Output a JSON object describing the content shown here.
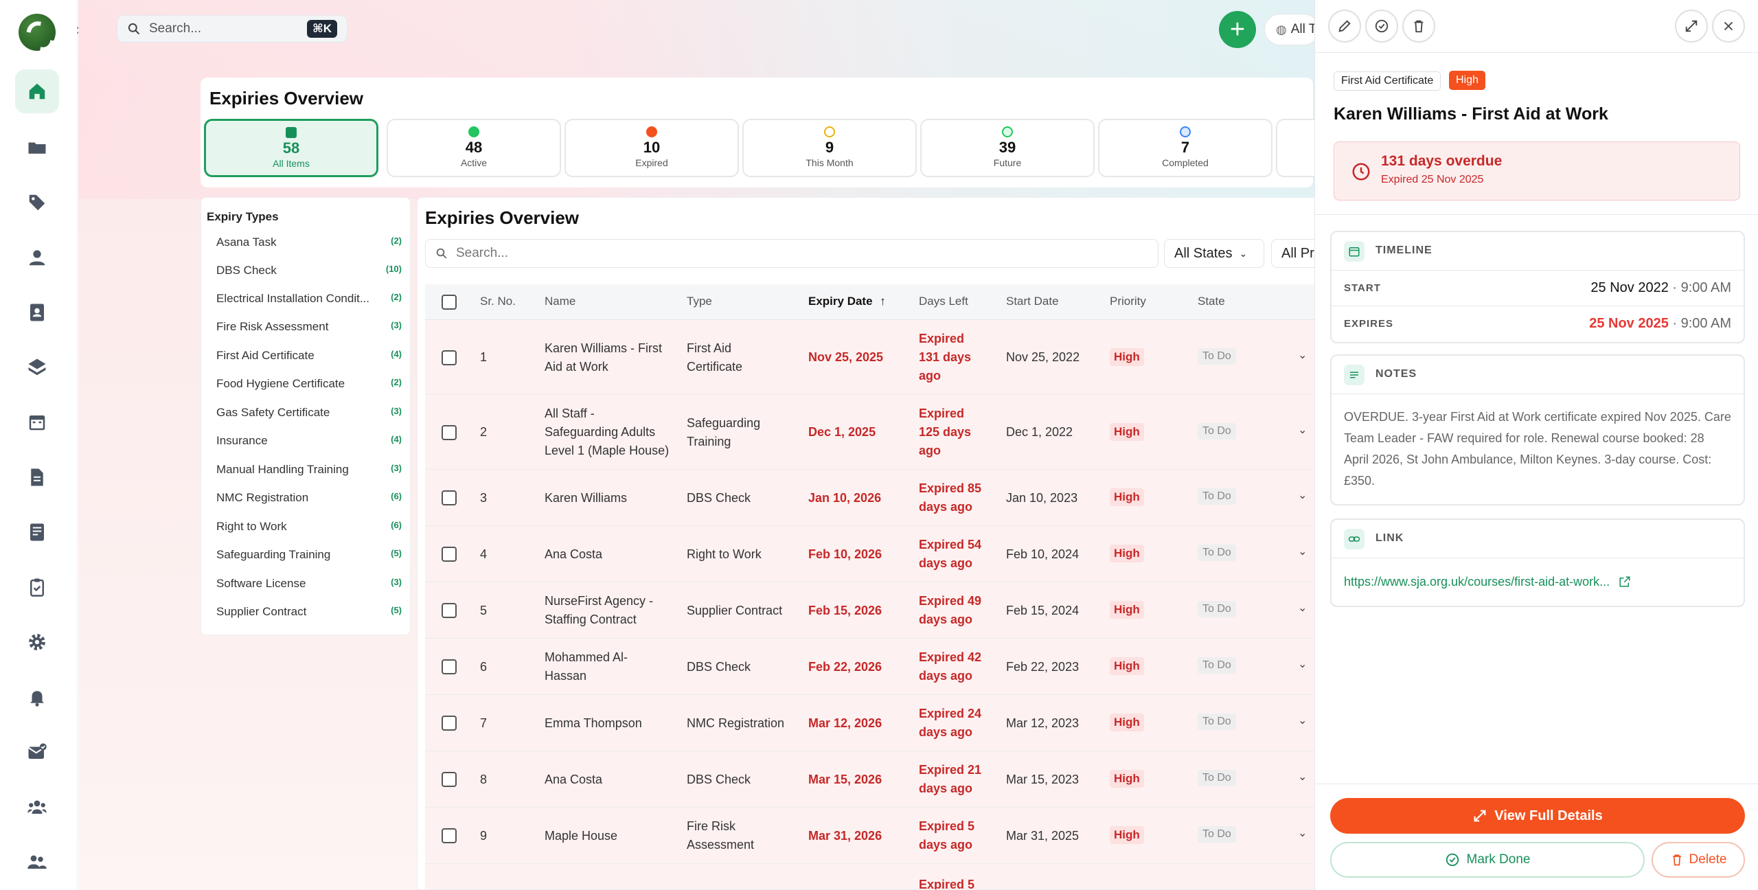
{
  "topbar": {
    "search_placeholder": "Search...",
    "shortcut": "⌘K",
    "add_label": "+",
    "scope_label": "All T"
  },
  "overview": {
    "title": "Expiries Overview",
    "stats": [
      {
        "value": "58",
        "label": "All Items",
        "color": "#16905a"
      },
      {
        "value": "48",
        "label": "Active",
        "color": "#22c55e"
      },
      {
        "value": "10",
        "label": "Expired",
        "color": "#f4511e"
      },
      {
        "value": "9",
        "label": "This Month",
        "color": "#eab308"
      },
      {
        "value": "39",
        "label": "Future",
        "color": "#22c55e"
      },
      {
        "value": "7",
        "label": "Completed",
        "color": "#3b82f6"
      }
    ]
  },
  "expiry_types": {
    "title": "Expiry Types",
    "items": [
      {
        "label": "Asana Task",
        "count": "(2)"
      },
      {
        "label": "DBS Check",
        "count": "(10)"
      },
      {
        "label": "Electrical Installation Condit...",
        "count": "(2)"
      },
      {
        "label": "Fire Risk Assessment",
        "count": "(3)"
      },
      {
        "label": "First Aid Certificate",
        "count": "(4)"
      },
      {
        "label": "Food Hygiene Certificate",
        "count": "(2)"
      },
      {
        "label": "Gas Safety Certificate",
        "count": "(3)"
      },
      {
        "label": "Insurance",
        "count": "(4)"
      },
      {
        "label": "Manual Handling Training",
        "count": "(3)"
      },
      {
        "label": "NMC Registration",
        "count": "(6)"
      },
      {
        "label": "Right to Work",
        "count": "(6)"
      },
      {
        "label": "Safeguarding Training",
        "count": "(5)"
      },
      {
        "label": "Software License",
        "count": "(3)"
      },
      {
        "label": "Supplier Contract",
        "count": "(5)"
      }
    ]
  },
  "table": {
    "title": "Expiries Overview",
    "search_placeholder": "Search...",
    "filter_states": "All States",
    "filter_priority": "All Pr",
    "columns": [
      "Sr. No.",
      "Name",
      "Type",
      "Expiry Date",
      "Days Left",
      "Start Date",
      "Priority",
      "State"
    ],
    "rows": [
      {
        "sr": "1",
        "name": [
          "Karen Williams - First",
          "Aid at Work"
        ],
        "type": [
          "First Aid",
          "Certificate"
        ],
        "expiry": "Nov 25, 2025",
        "days": [
          "Expired",
          "131 days",
          "ago"
        ],
        "start": "Nov 25, 2022",
        "priority": "High",
        "state": "To Do"
      },
      {
        "sr": "2",
        "name": [
          "All Staff -",
          "Safeguarding Adults",
          "Level 1 (Maple House)"
        ],
        "type": [
          "Safeguarding",
          "Training"
        ],
        "expiry": "Dec 1, 2025",
        "days": [
          "Expired",
          "125 days",
          "ago"
        ],
        "start": "Dec 1, 2022",
        "priority": "High",
        "state": "To Do"
      },
      {
        "sr": "3",
        "name": [
          "Karen Williams"
        ],
        "type": [
          "DBS Check"
        ],
        "expiry": "Jan 10, 2026",
        "days": [
          "Expired 85",
          "days ago"
        ],
        "start": "Jan 10, 2023",
        "priority": "High",
        "state": "To Do"
      },
      {
        "sr": "4",
        "name": [
          "Ana Costa"
        ],
        "type": [
          "Right to Work"
        ],
        "expiry": "Feb 10, 2026",
        "days": [
          "Expired 54",
          "days ago"
        ],
        "start": "Feb 10, 2024",
        "priority": "High",
        "state": "To Do"
      },
      {
        "sr": "5",
        "name": [
          "NurseFirst Agency -",
          "Staffing Contract"
        ],
        "type": [
          "Supplier Contract"
        ],
        "expiry": "Feb 15, 2026",
        "days": [
          "Expired 49",
          "days ago"
        ],
        "start": "Feb 15, 2024",
        "priority": "High",
        "state": "To Do"
      },
      {
        "sr": "6",
        "name": [
          "Mohammed Al-",
          "Hassan"
        ],
        "type": [
          "DBS Check"
        ],
        "expiry": "Feb 22, 2026",
        "days": [
          "Expired 42",
          "days ago"
        ],
        "start": "Feb 22, 2023",
        "priority": "High",
        "state": "To Do"
      },
      {
        "sr": "7",
        "name": [
          "Emma Thompson"
        ],
        "type": [
          "NMC Registration"
        ],
        "expiry": "Mar 12, 2026",
        "days": [
          "Expired 24",
          "days ago"
        ],
        "start": "Mar 12, 2023",
        "priority": "High",
        "state": "To Do"
      },
      {
        "sr": "8",
        "name": [
          "Ana Costa"
        ],
        "type": [
          "DBS Check"
        ],
        "expiry": "Mar 15, 2026",
        "days": [
          "Expired 21",
          "days ago"
        ],
        "start": "Mar 15, 2023",
        "priority": "High",
        "state": "To Do"
      },
      {
        "sr": "9",
        "name": [
          "Maple House"
        ],
        "type": [
          "Fire Risk",
          "Assessment"
        ],
        "expiry": "Mar 31, 2026",
        "days": [
          "Expired 5",
          "days ago"
        ],
        "start": "Mar 31, 2025",
        "priority": "High",
        "state": "To Do"
      },
      {
        "sr": "",
        "name": [
          ""
        ],
        "type": [
          ""
        ],
        "expiry": "",
        "days": [
          "Expired 5"
        ],
        "start": "",
        "priority": "",
        "state": ""
      }
    ]
  },
  "detail": {
    "type_tag": "First Aid Certificate",
    "priority_tag": "High",
    "title": "Karen Williams - First Aid at Work",
    "overdue_text": "131 days overdue",
    "overdue_sub": "Expired 25 Nov 2025",
    "timeline": {
      "heading": "TIMELINE",
      "start_label": "START",
      "start_date": "25 Nov 2022",
      "start_time": " · 9:00 AM",
      "expires_label": "EXPIRES",
      "expires_date": "25 Nov 2025",
      "expires_time": " · 9:00 AM"
    },
    "notes": {
      "heading": "NOTES",
      "text": "OVERDUE. 3-year First Aid at Work certificate expired Nov 2025. Care Team Leader - FAW required for role. Renewal course booked: 28 April 2026, St John Ambulance, Milton Keynes. 3-day course. Cost: £350."
    },
    "link": {
      "heading": "LINK",
      "url": "https://www.sja.org.uk/courses/first-aid-at-work..."
    },
    "view_button": "View Full Details",
    "done_button": "Mark Done",
    "delete_button": "Delete"
  }
}
